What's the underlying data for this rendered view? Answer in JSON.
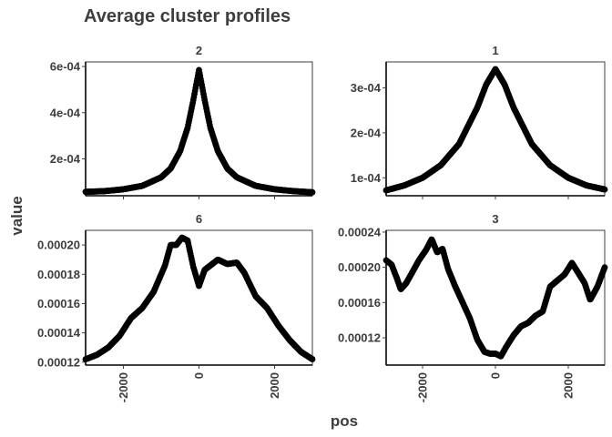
{
  "title": "Average cluster profiles",
  "xlabel": "pos",
  "ylabel": "value",
  "chart_data": {
    "type": "scatter",
    "facet_layout": "2x2",
    "xlim": [
      -3000,
      3000
    ],
    "x_ticks": [
      -2000,
      0,
      2000
    ],
    "x_tick_labels": [
      "-2000",
      "0",
      "2000"
    ],
    "grid": false,
    "marker_color": "#000000",
    "panels": [
      {
        "label": "2",
        "ylim": [
          4e-05,
          0.00062
        ],
        "y_ticks": [
          0.0002,
          0.0004,
          0.0006
        ],
        "y_tick_labels": [
          "2e-04",
          "4e-04",
          "6e-04"
        ],
        "x": [
          -3000,
          -2500,
          -2000,
          -1500,
          -1000,
          -750,
          -500,
          -300,
          -150,
          0,
          150,
          300,
          500,
          750,
          1000,
          1500,
          2000,
          2500,
          3000
        ],
        "y": [
          5.7e-05,
          6e-05,
          6.8e-05,
          8.3e-05,
          0.00012,
          0.000158,
          0.000233,
          0.000335,
          0.000455,
          0.000585,
          0.000455,
          0.000335,
          0.000233,
          0.000158,
          0.00012,
          8.3e-05,
          6.8e-05,
          6e-05,
          5.5e-05
        ]
      },
      {
        "label": "1",
        "ylim": [
          6e-05,
          0.000358
        ],
        "y_ticks": [
          0.0001,
          0.0002,
          0.0003
        ],
        "y_tick_labels": [
          "1e-04",
          "2e-04",
          "3e-04"
        ],
        "x": [
          -3000,
          -2500,
          -2000,
          -1500,
          -1000,
          -500,
          -250,
          0,
          250,
          500,
          1000,
          1500,
          2000,
          2500,
          3000
        ],
        "y": [
          7.2e-05,
          8.3e-05,
          0.0001,
          0.000128,
          0.000175,
          0.000256,
          0.000308,
          0.000342,
          0.000308,
          0.000256,
          0.000175,
          0.000128,
          0.0001,
          8.3e-05,
          7.4e-05
        ]
      },
      {
        "label": "6",
        "ylim": [
          0.000118,
          0.00021
        ],
        "y_ticks": [
          0.00012,
          0.00014,
          0.00016,
          0.00018,
          0.0002
        ],
        "y_tick_labels": [
          "0.00012",
          "0.00014",
          "0.00016",
          "0.00018",
          "0.00020"
        ],
        "x": [
          -3000,
          -2700,
          -2400,
          -2100,
          -1800,
          -1500,
          -1200,
          -900,
          -750,
          -600,
          -450,
          -300,
          -150,
          0,
          150,
          300,
          500,
          750,
          1000,
          1200,
          1500,
          1800,
          2100,
          2400,
          2700,
          3000
        ],
        "y": [
          0.000122,
          0.000125,
          0.00013,
          0.000138,
          0.00015,
          0.000157,
          0.000168,
          0.000186,
          0.0002,
          0.0002,
          0.000205,
          0.000203,
          0.000185,
          0.000172,
          0.000183,
          0.000186,
          0.00019,
          0.000187,
          0.000188,
          0.000181,
          0.000165,
          0.000157,
          0.000145,
          0.000135,
          0.000127,
          0.000122
        ]
      },
      {
        "label": "3",
        "ylim": [
          8.9e-05,
          0.000242
        ],
        "y_ticks": [
          0.00012,
          0.00016,
          0.0002,
          0.00024
        ],
        "y_tick_labels": [
          "0.00012",
          "0.00016",
          "0.00020",
          "0.00024"
        ],
        "x": [
          -3000,
          -2850,
          -2700,
          -2600,
          -2450,
          -2300,
          -2100,
          -1900,
          -1750,
          -1600,
          -1450,
          -1300,
          -1100,
          -900,
          -700,
          -500,
          -300,
          -150,
          0,
          150,
          300,
          500,
          700,
          900,
          1100,
          1300,
          1500,
          1700,
          1900,
          2100,
          2300,
          2450,
          2600,
          2800,
          3000
        ],
        "y": [
          0.000208,
          0.000203,
          0.000187,
          0.000175,
          0.000182,
          0.000193,
          0.000208,
          0.00022,
          0.000232,
          0.000217,
          0.000221,
          0.000198,
          0.000178,
          0.00016,
          0.000142,
          0.000118,
          0.000104,
          0.000102,
          0.000102,
          9.9e-05,
          0.00011,
          0.000123,
          0.000133,
          0.000137,
          0.000145,
          0.00015,
          0.000178,
          0.000185,
          0.000192,
          0.000205,
          0.000192,
          0.000182,
          0.000163,
          0.000178,
          0.0002
        ]
      }
    ]
  }
}
